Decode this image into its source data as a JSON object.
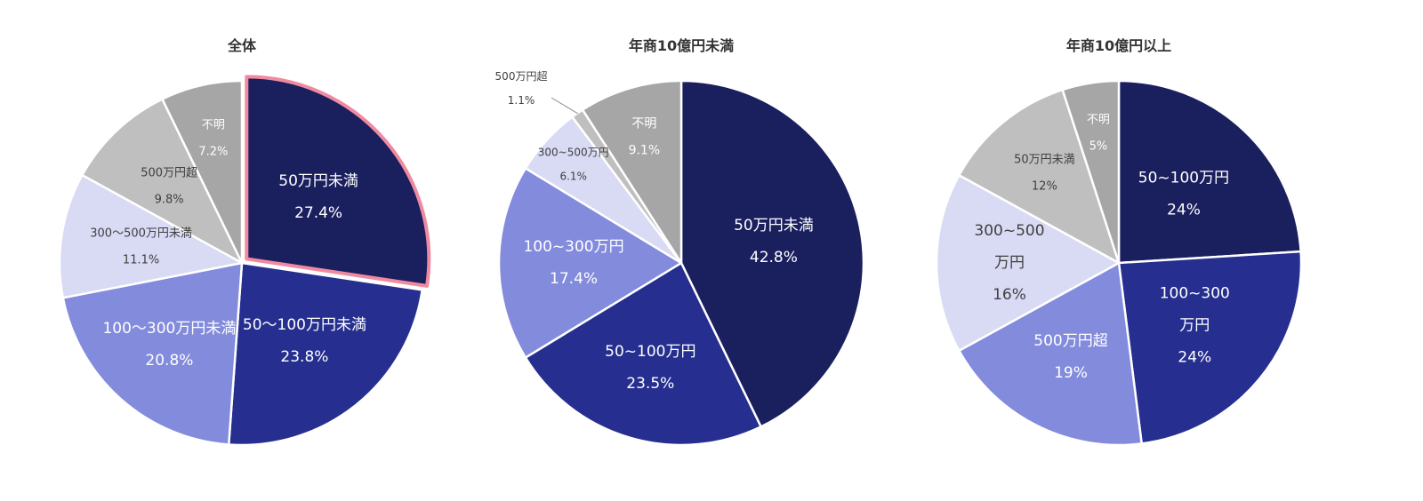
{
  "chart_data": [
    {
      "type": "pie",
      "title": "全体",
      "slices": [
        {
          "label": "50万円未満",
          "value": 27.4,
          "display": "27.4%",
          "color": "#1a1f5e",
          "highlight": true
        },
        {
          "label": "50～100万円未満",
          "value": 23.8,
          "display": "23.8%",
          "color": "#262f8f"
        },
        {
          "label": "100～300万円未満",
          "value": 20.8,
          "display": "20.8%",
          "color": "#838bdc"
        },
        {
          "label": "300～500万円未満",
          "value": 11.1,
          "display": "11.1%",
          "color": "#d9daf4"
        },
        {
          "label": "500万円超",
          "value": 9.8,
          "display": "9.8%",
          "color": "#bfbfbf"
        },
        {
          "label": "不明",
          "value": 7.2,
          "display": "7.2%",
          "color": "#a6a6a6"
        }
      ]
    },
    {
      "type": "pie",
      "title": "年商10億円未満",
      "slices": [
        {
          "label": "50万円未満",
          "value": 42.8,
          "display": "42.8%",
          "color": "#1a1f5e"
        },
        {
          "label": "50~100万円",
          "value": 23.5,
          "display": "23.5%",
          "color": "#262f8f"
        },
        {
          "label": "100~300万円",
          "value": 17.4,
          "display": "17.4%",
          "color": "#838bdc"
        },
        {
          "label": "300~500万円",
          "value": 6.1,
          "display": "6.1%",
          "color": "#d9daf4"
        },
        {
          "label": "500万円超",
          "value": 1.1,
          "display": "1.1%",
          "color": "#bfbfbf"
        },
        {
          "label": "不明",
          "value": 9.1,
          "display": "9.1%",
          "color": "#a6a6a6"
        }
      ]
    },
    {
      "type": "pie",
      "title": "年商10億円以上",
      "slices": [
        {
          "label": "50~100万円",
          "value": 24,
          "display": "24%",
          "color": "#1a1f5e"
        },
        {
          "label": "100~300万円",
          "value": 24,
          "display": "24%",
          "color": "#262f8f"
        },
        {
          "label": "500万円超",
          "value": 19,
          "display": "19%",
          "color": "#838bdc"
        },
        {
          "label": "300~500万円",
          "value": 16,
          "display": "16%",
          "color": "#d9daf4"
        },
        {
          "label": "50万円未満",
          "value": 12,
          "display": "12%",
          "color": "#bfbfbf"
        },
        {
          "label": "不明",
          "value": 5,
          "display": "5%",
          "color": "#a6a6a6"
        }
      ]
    }
  ]
}
